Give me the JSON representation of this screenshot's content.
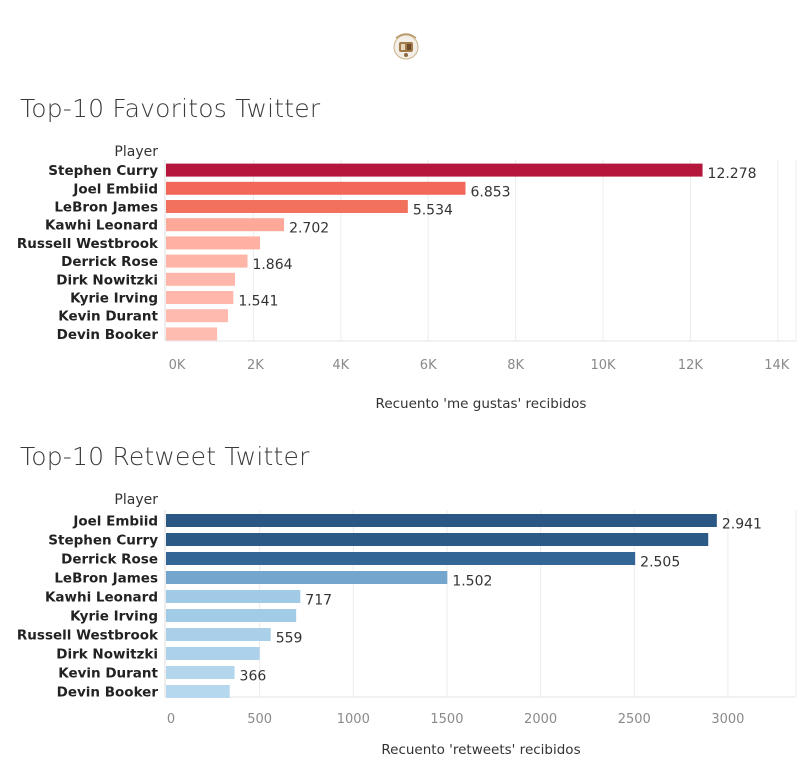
{
  "charts": [
    {
      "title": "Top-10 Favoritos Twitter",
      "row_header": "Player",
      "xlabel": "Recuento 'me gustas' recibidos",
      "tick_values": [
        0,
        2000,
        4000,
        6000,
        8000,
        10000,
        12000,
        14000
      ],
      "tick_labels": [
        "0K",
        "2K",
        "4K",
        "6K",
        "8K",
        "10K",
        "12K",
        "14K"
      ],
      "bars": [
        {
          "category": "Stephen Curry",
          "value": 12278,
          "label": "12.278",
          "color": "#b4163c"
        },
        {
          "category": "Joel Embiid",
          "value": 6853,
          "label": "6.853",
          "color": "#f2675a"
        },
        {
          "category": "LeBron James",
          "value": 5534,
          "label": "5.534",
          "color": "#f2715c"
        },
        {
          "category": "Kawhi Leonard",
          "value": 2702,
          "label": "2.702",
          "color": "#fda898"
        },
        {
          "category": "Russell Westbrook",
          "value": 2150,
          "label": "",
          "color": "#feb0a2"
        },
        {
          "category": "Derrick Rose",
          "value": 1864,
          "label": "1.864",
          "color": "#feb4a6"
        },
        {
          "category": "Dirk Nowitzki",
          "value": 1580,
          "label": "",
          "color": "#feb7aa"
        },
        {
          "category": "Kyrie Irving",
          "value": 1541,
          "label": "1.541",
          "color": "#feb7aa"
        },
        {
          "category": "Kevin Durant",
          "value": 1420,
          "label": "",
          "color": "#febaae"
        },
        {
          "category": "Devin Booker",
          "value": 1170,
          "label": "",
          "color": "#febcb0"
        }
      ]
    },
    {
      "title": "Top-10 Retweet Twitter",
      "row_header": "Player",
      "xlabel": "Recuento 'retweets' recibidos",
      "tick_values": [
        0,
        500,
        1000,
        1500,
        2000,
        2500,
        3000
      ],
      "tick_labels": [
        "0",
        "500",
        "1000",
        "1500",
        "2000",
        "2500",
        "3000"
      ],
      "bars": [
        {
          "category": "Joel Embiid",
          "value": 2941,
          "label": "2.941",
          "color": "#2a5783"
        },
        {
          "category": "Stephen Curry",
          "value": 2895,
          "label": "",
          "color": "#2c5a86"
        },
        {
          "category": "Derrick Rose",
          "value": 2505,
          "label": "2.505",
          "color": "#336596"
        },
        {
          "category": "LeBron James",
          "value": 1502,
          "label": "1.502",
          "color": "#74a5cc"
        },
        {
          "category": "Kawhi Leonard",
          "value": 717,
          "label": "717",
          "color": "#a0cae6"
        },
        {
          "category": "Kyrie Irving",
          "value": 695,
          "label": "",
          "color": "#a2cbe7"
        },
        {
          "category": "Russell Westbrook",
          "value": 559,
          "label": "559",
          "color": "#a9cfe9"
        },
        {
          "category": "Dirk Nowitzki",
          "value": 500,
          "label": "",
          "color": "#acd1ea"
        },
        {
          "category": "Kevin Durant",
          "value": 366,
          "label": "366",
          "color": "#b3d6ed"
        },
        {
          "category": "Devin Booker",
          "value": 340,
          "label": "",
          "color": "#b6d8ee"
        }
      ]
    }
  ],
  "chart_data": [
    {
      "type": "bar",
      "title": "Top-10 Favoritos Twitter",
      "categories": [
        "Stephen Curry",
        "Joel Embiid",
        "LeBron James",
        "Kawhi Leonard",
        "Russell Westbrook",
        "Derrick Rose",
        "Dirk Nowitzki",
        "Kyrie Irving",
        "Kevin Durant",
        "Devin Booker"
      ],
      "values": [
        12278,
        6853,
        5534,
        2702,
        2150,
        1864,
        1580,
        1541,
        1420,
        1170
      ],
      "xlabel": "Recuento 'me gustas' recibidos",
      "ylabel": "Player",
      "xlim": [
        0,
        14000
      ],
      "orientation": "horizontal"
    },
    {
      "type": "bar",
      "title": "Top-10 Retweet Twitter",
      "categories": [
        "Joel Embiid",
        "Stephen Curry",
        "Derrick Rose",
        "LeBron James",
        "Kawhi Leonard",
        "Kyrie Irving",
        "Russell Westbrook",
        "Dirk Nowitzki",
        "Kevin Durant",
        "Devin Booker"
      ],
      "values": [
        2941,
        2895,
        2505,
        1502,
        717,
        695,
        559,
        500,
        366,
        340
      ],
      "xlabel": "Recuento 'retweets' recibidos",
      "ylabel": "Player",
      "xlim": [
        0,
        3300
      ],
      "orientation": "horizontal"
    }
  ]
}
